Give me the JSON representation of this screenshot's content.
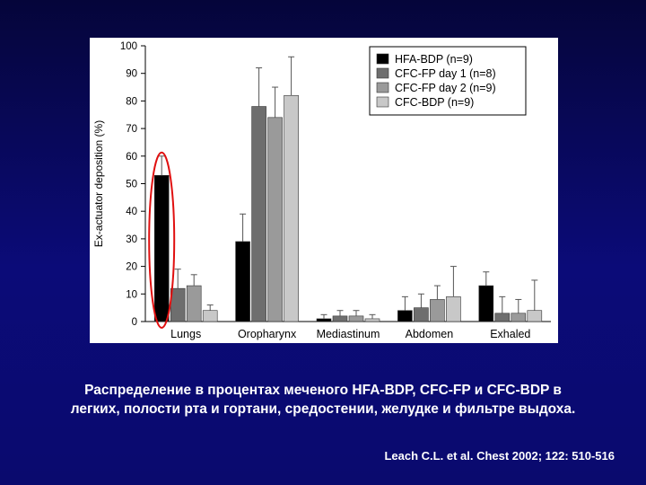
{
  "chart_data": {
    "type": "bar",
    "ylabel": "Ex-actuator deposition (%)",
    "ylim": [
      0,
      100
    ],
    "yticks": [
      0,
      10,
      20,
      30,
      40,
      50,
      60,
      70,
      80,
      90,
      100
    ],
    "categories": [
      "Lungs",
      "Oropharynx",
      "Mediastinum",
      "Abdomen",
      "Exhaled"
    ],
    "series": [
      {
        "name": "HFA-BDP (n=9)",
        "color": "#000000",
        "values": [
          53,
          29,
          1,
          4,
          13
        ],
        "errors": [
          7,
          10,
          1.5,
          5,
          5
        ]
      },
      {
        "name": "CFC-FP day 1 (n=8)",
        "color": "#6e6e6e",
        "values": [
          12,
          78,
          2,
          5,
          3
        ],
        "errors": [
          7,
          14,
          2,
          5,
          6
        ]
      },
      {
        "name": "CFC-FP day 2 (n=9)",
        "color": "#9a9a9a",
        "values": [
          13,
          74,
          2,
          8,
          3
        ],
        "errors": [
          4,
          11,
          2,
          5,
          5
        ]
      },
      {
        "name": "CFC-BDP (n=9)",
        "color": "#c8c8c8",
        "values": [
          4,
          82,
          1,
          9,
          4
        ],
        "errors": [
          2,
          14,
          1.5,
          11,
          11
        ]
      }
    ],
    "legend": "top-right",
    "highlight": {
      "category": "Lungs",
      "series": "HFA-BDP (n=9)",
      "color": "#e01010",
      "shape": "ellipse"
    }
  },
  "caption": {
    "line1": "Распределение в процентах меченого HFA-BDP, CFC-FP и CFC-BDP в",
    "line2": "легких, полости рта и гортани, средостении, желудке и фильтре выдоха."
  },
  "citation": "Leach C.L. et al. Chest 2002; 122: 510-516"
}
